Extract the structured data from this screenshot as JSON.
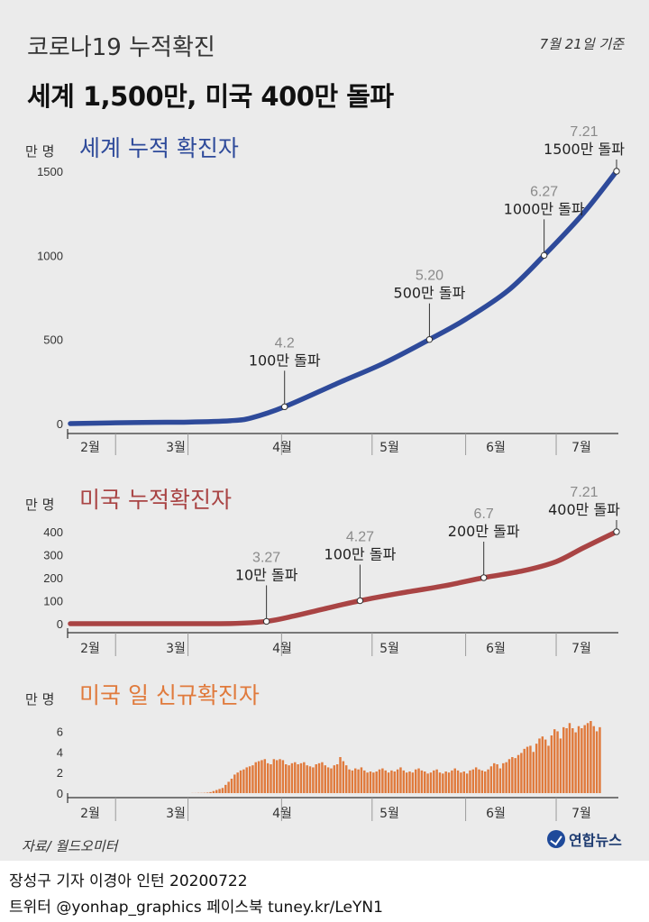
{
  "header": {
    "title": "코로나19 누적확진",
    "subtitle": "세계 1,500만, 미국 400만 돌파",
    "basis": "7월 21일 기준"
  },
  "footer": {
    "source": "자료/ 월드오미터",
    "logo": "연합뉴스",
    "credit_line1": "장성구 기자  이경아 인턴  20200722",
    "credit_line2": "트위터 @yonhap_graphics  페이스북 tuney.kr/LeYN1"
  },
  "colors": {
    "world": "#2e4a9a",
    "us_cumulative": "#a94444",
    "us_daily": "#e07a3c",
    "axis": "#333333"
  },
  "chart_data": [
    {
      "id": "world",
      "type": "line",
      "title": "세계 누적 확진자",
      "unit_label": "만 명",
      "ylim": [
        0,
        1500
      ],
      "y_ticks": [
        0,
        500,
        1000,
        1500
      ],
      "x_month_labels": [
        "2월",
        "3월",
        "4월",
        "5월",
        "6월",
        "7월"
      ],
      "series": [
        {
          "x": [
            "2020-01-22",
            "2020-02-15",
            "2020-03-01",
            "2020-03-15",
            "2020-03-22",
            "2020-04-02",
            "2020-04-20",
            "2020-05-05",
            "2020-05-20",
            "2020-06-01",
            "2020-06-15",
            "2020-06-27",
            "2020-07-10",
            "2020-07-21"
          ],
          "values": [
            0,
            7,
            9,
            17,
            34,
            100,
            243,
            360,
            500,
            620,
            790,
            1000,
            1250,
            1500
          ]
        }
      ],
      "annotations": [
        {
          "date": "4.2",
          "text": "100만 돌파",
          "x": "2020-04-02",
          "y": 100
        },
        {
          "date": "5.20",
          "text": "500만 돌파",
          "x": "2020-05-20",
          "y": 500
        },
        {
          "date": "6.27",
          "text": "1000만 돌파",
          "x": "2020-06-27",
          "y": 1000
        },
        {
          "date": "7.21",
          "text": "1500만 돌파",
          "x": "2020-07-21",
          "y": 1500
        }
      ]
    },
    {
      "id": "us_cumulative",
      "type": "line",
      "title": "미국 누적확진자",
      "unit_label": "만 명",
      "ylim": [
        0,
        400
      ],
      "y_ticks": [
        0,
        100,
        200,
        300,
        400
      ],
      "x_month_labels": [
        "2월",
        "3월",
        "4월",
        "5월",
        "6월",
        "7월"
      ],
      "series": [
        {
          "x": [
            "2020-01-22",
            "2020-03-01",
            "2020-03-15",
            "2020-03-27",
            "2020-04-05",
            "2020-04-15",
            "2020-04-27",
            "2020-05-10",
            "2020-05-25",
            "2020-06-07",
            "2020-06-20",
            "2020-07-01",
            "2020-07-10",
            "2020-07-21"
          ],
          "values": [
            0,
            0,
            0.3,
            10,
            33,
            64,
            100,
            132,
            165,
            200,
            230,
            270,
            330,
            400
          ]
        }
      ],
      "annotations": [
        {
          "date": "3.27",
          "text": "10만 돌파",
          "x": "2020-03-27",
          "y": 10
        },
        {
          "date": "4.27",
          "text": "100만 돌파",
          "x": "2020-04-27",
          "y": 100
        },
        {
          "date": "6.7",
          "text": "200만 돌파",
          "x": "2020-06-07",
          "y": 200
        },
        {
          "date": "7.21",
          "text": "400만 돌파",
          "x": "2020-07-21",
          "y": 400
        }
      ]
    },
    {
      "id": "us_daily",
      "type": "bar",
      "title": "미국 일 신규확진자",
      "unit_label": "만 명",
      "ylim": [
        0,
        7
      ],
      "y_ticks": [
        0,
        2,
        4,
        6
      ],
      "x_month_labels": [
        "2월",
        "3월",
        "4월",
        "5월",
        "6월",
        "7월"
      ],
      "x_start": "2020-01-22",
      "values": [
        0,
        0,
        0,
        0,
        0,
        0,
        0,
        0,
        0,
        0,
        0,
        0,
        0,
        0,
        0,
        0,
        0,
        0,
        0,
        0,
        0,
        0,
        0,
        0,
        0,
        0,
        0,
        0,
        0,
        0,
        0,
        0,
        0,
        0,
        0,
        0,
        0,
        0,
        0,
        0,
        0.01,
        0.01,
        0.02,
        0.02,
        0.03,
        0.05,
        0.1,
        0.2,
        0.3,
        0.4,
        0.5,
        0.8,
        1.1,
        1.4,
        1.8,
        2.0,
        2.2,
        2.3,
        2.5,
        2.6,
        2.7,
        3.0,
        3.1,
        3.2,
        3.3,
        2.9,
        2.8,
        3.3,
        3.2,
        3.3,
        3.2,
        2.8,
        2.7,
        2.9,
        3.0,
        2.8,
        2.9,
        3.0,
        2.7,
        2.6,
        2.5,
        2.8,
        2.9,
        3.0,
        2.7,
        2.5,
        2.4,
        2.7,
        2.8,
        3.5,
        3.1,
        2.7,
        2.3,
        2.2,
        2.4,
        2.3,
        2.5,
        2.2,
        2.0,
        2.1,
        2.0,
        2.1,
        2.3,
        2.4,
        2.2,
        2.0,
        2.2,
        2.1,
        2.3,
        2.5,
        2.2,
        2.0,
        2.1,
        2.0,
        2.3,
        2.4,
        2.2,
        2.1,
        1.9,
        2.0,
        2.2,
        2.3,
        2.0,
        1.9,
        2.1,
        2.0,
        2.2,
        2.4,
        2.2,
        2.0,
        2.1,
        1.9,
        2.2,
        2.3,
        2.5,
        2.3,
        2.2,
        2.1,
        2.3,
        2.6,
        2.9,
        2.8,
        2.4,
        2.9,
        3.0,
        3.3,
        3.5,
        3.4,
        3.7,
        3.9,
        4.3,
        4.5,
        4.6,
        4.0,
        4.8,
        5.3,
        5.5,
        5.2,
        4.6,
        5.6,
        6.2,
        6.0,
        5.3,
        6.4,
        6.3,
        6.8,
        6.3,
        5.9,
        6.5,
        6.3,
        6.6,
        6.8,
        7.0,
        6.5,
        6.0,
        6.4
      ]
    }
  ]
}
